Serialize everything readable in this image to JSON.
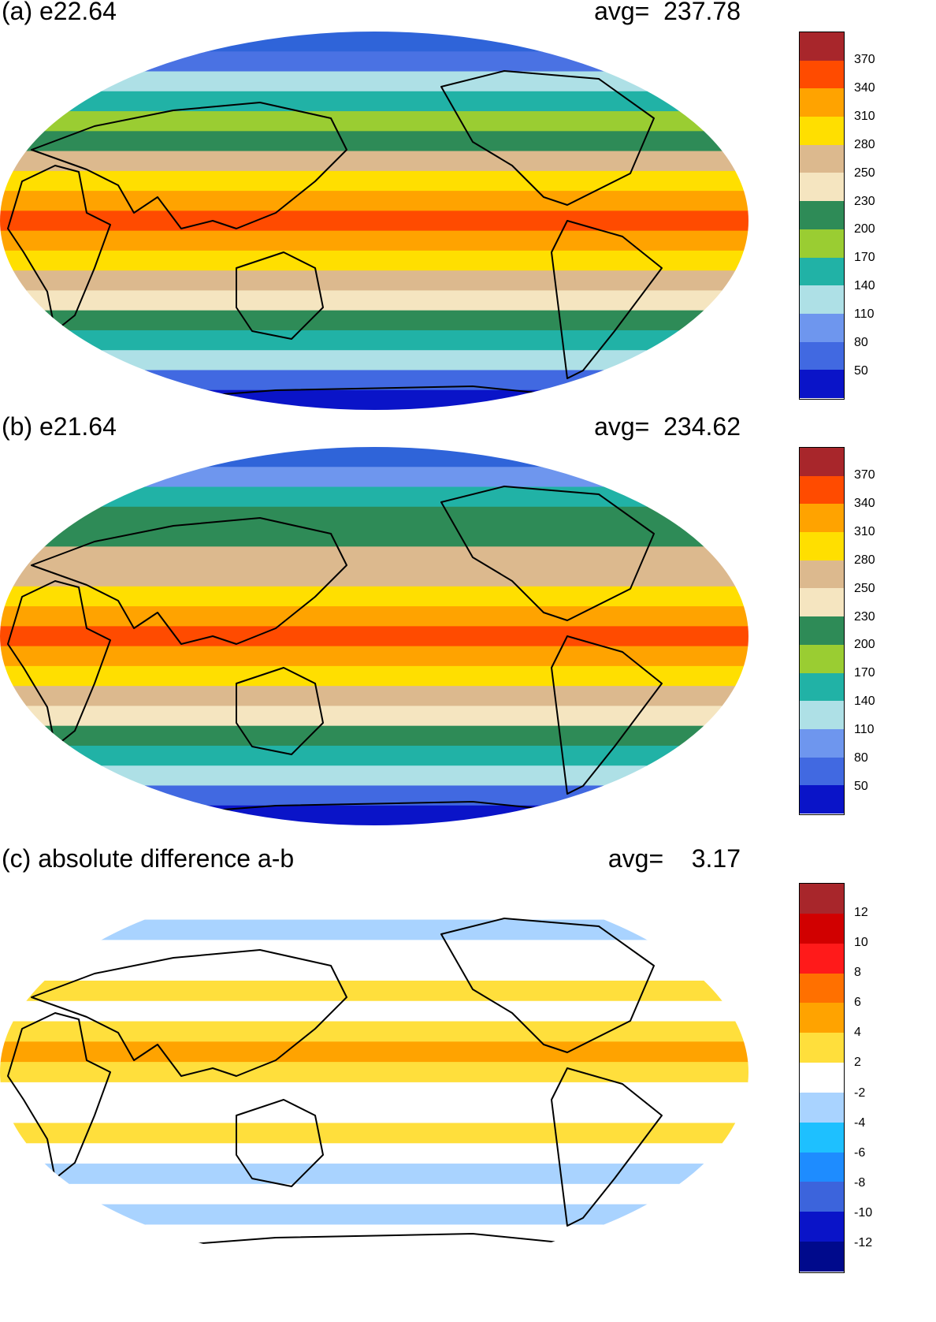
{
  "panels": [
    {
      "id": "a",
      "title": "(a) e22.64",
      "avg_label": "avg=  237.78",
      "colorbar": {
        "labels": [
          "370",
          "340",
          "310",
          "280",
          "250",
          "230",
          "200",
          "170",
          "140",
          "110",
          "80",
          "50"
        ],
        "colors": [
          "#a8262b",
          "#ff4b00",
          "#ffa300",
          "#ffdf00",
          "#dcb98e",
          "#f5e5c0",
          "#2e8b57",
          "#9acd32",
          "#21b2a6",
          "#aee0e6",
          "#6e96ee",
          "#4169e1",
          "#0a14c8"
        ]
      },
      "map_bands": [
        "#2f64d9",
        "#4a72e3",
        "#aee0e6",
        "#21b2a6",
        "#9acd32",
        "#2e8b57",
        "#dcb98e",
        "#ffdf00",
        "#ffa300",
        "#ff4b00",
        "#ffa300",
        "#ffdf00",
        "#dcb98e",
        "#f5e5c0",
        "#2e8b57",
        "#21b2a6",
        "#aee0e6",
        "#4169e1",
        "#0a14c8"
      ]
    },
    {
      "id": "b",
      "title": "(b) e21.64",
      "avg_label": "avg=  234.62",
      "colorbar": {
        "labels": [
          "370",
          "340",
          "310",
          "280",
          "250",
          "230",
          "200",
          "170",
          "140",
          "110",
          "80",
          "50"
        ],
        "colors": [
          "#a8262b",
          "#ff4b00",
          "#ffa300",
          "#ffdf00",
          "#dcb98e",
          "#f5e5c0",
          "#2e8b57",
          "#9acd32",
          "#21b2a6",
          "#aee0e6",
          "#6e96ee",
          "#4169e1",
          "#0a14c8"
        ]
      },
      "map_bands": [
        "#2f64d9",
        "#6e96ee",
        "#21b2a6",
        "#2e8b57",
        "#2e8b57",
        "#dcb98e",
        "#dcb98e",
        "#ffdf00",
        "#ffa300",
        "#ff4b00",
        "#ffa300",
        "#ffdf00",
        "#dcb98e",
        "#f5e5c0",
        "#2e8b57",
        "#21b2a6",
        "#aee0e6",
        "#4169e1",
        "#0a14c8"
      ]
    },
    {
      "id": "c",
      "title": "(c) absolute difference a-b",
      "avg_label": "avg=    3.17",
      "colorbar": {
        "labels": [
          "12",
          "10",
          "8",
          "6",
          "4",
          "2",
          "-2",
          "-4",
          "-6",
          "-8",
          "-10",
          "-12"
        ],
        "colors": [
          "#a8262b",
          "#d10000",
          "#ff1a1a",
          "#ff7000",
          "#ffa300",
          "#ffdf3c",
          "#ffffff",
          "#a9d3ff",
          "#1ec0ff",
          "#1e8cff",
          "#3c64dc",
          "#0a14c8",
          "#000a8c"
        ]
      },
      "map_bands": [
        "#ffffff",
        "#ffffff",
        "#a9d3ff",
        "#ffffff",
        "#ffffff",
        "#ffdf3c",
        "#ffffff",
        "#ffdf3c",
        "#ffa300",
        "#ffdf3c",
        "#ffffff",
        "#ffffff",
        "#ffdf3c",
        "#ffffff",
        "#a9d3ff",
        "#ffffff",
        "#a9d3ff",
        "#ffffff",
        "#ffffff"
      ]
    }
  ]
}
